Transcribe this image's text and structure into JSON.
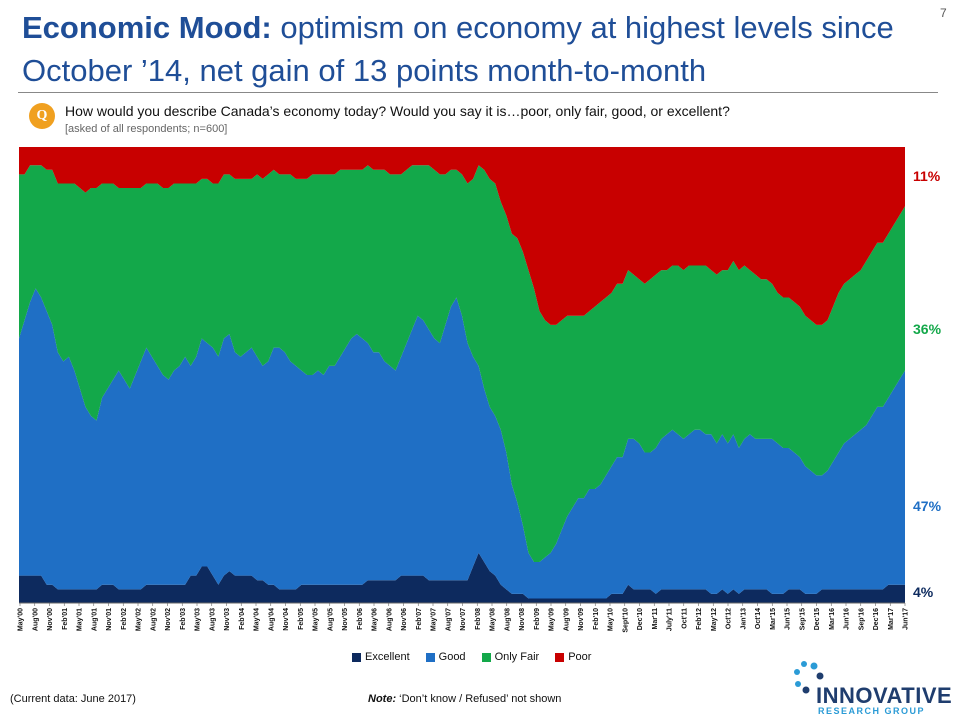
{
  "title": {
    "bold": "Economic Mood:",
    "rest": " optimism on economy at highest levels since October ’14, net gain of 13 points month-to-month"
  },
  "page_number": "7",
  "question": {
    "badge": "Q",
    "text": "How would you describe Canada’s economy today?  Would you say it is…poor, only fair, good, or excellent?",
    "note": "[asked of all respondents; n=600]"
  },
  "end_labels": {
    "poor": "11%",
    "only_fair": "36%",
    "good": "47%",
    "excellent": "4%"
  },
  "footer": {
    "current_data": "(Current data: June 2017)",
    "note_label": "Note:",
    "note_text": " ‘Don’t know / Refused’ not shown"
  },
  "logo": {
    "name": "INNOVATIVE",
    "sub": "RESEARCH GROUP"
  },
  "colors": {
    "excellent": "#0d2a5e",
    "good": "#1f6fc5",
    "only_fair": "#13a84a",
    "poor": "#c80000",
    "title": "#1f4e97"
  },
  "chart_data": {
    "type": "area",
    "stacked": true,
    "ylim": [
      0,
      100
    ],
    "series_order": [
      "Excellent",
      "Good",
      "Only Fair",
      "Poor"
    ],
    "legend": [
      "Excellent",
      "Good",
      "Only Fair",
      "Poor"
    ],
    "x_ticks": [
      "May'00",
      "Aug'00",
      "Nov'00",
      "Feb'01",
      "May'01",
      "Aug'01",
      "Nov'01",
      "Feb'02",
      "May'02",
      "Aug'02",
      "Nov'02",
      "Feb'03",
      "May'03",
      "Aug'03",
      "Nov'03",
      "Feb'04",
      "May'04",
      "Aug'04",
      "Nov'04",
      "Feb'05",
      "May'05",
      "Aug'05",
      "Nov'05",
      "Feb'06",
      "May'06",
      "Aug'06",
      "Nov'06",
      "Feb'07",
      "May'07",
      "Aug'07",
      "Nov'07",
      "Feb'08",
      "May'08",
      "Aug'08",
      "Nov'08",
      "Feb'09",
      "May'09",
      "Aug'09",
      "Nov'09",
      "Feb'10",
      "May'10",
      "Sept'10",
      "Dec'10",
      "Mar'11",
      "July'11",
      "Oct'11",
      "Feb'12",
      "May'12",
      "Oct'12",
      "Jan'13",
      "Oct'14",
      "Mar'15",
      "Jun'15",
      "Sep'15",
      "Dec'15",
      "Mar'16",
      "Jun'16",
      "Sep'16",
      "Dec'16",
      "Mar'17",
      "Jun'17"
    ],
    "series": [
      {
        "name": "Excellent",
        "values": [
          6,
          6,
          6,
          6,
          6,
          4,
          4,
          3,
          3,
          3,
          3,
          3,
          3,
          3,
          3,
          4,
          4,
          4,
          3,
          3,
          3,
          3,
          3,
          4,
          4,
          4,
          4,
          4,
          4,
          4,
          4,
          6,
          6,
          8,
          8,
          6,
          4,
          6,
          7,
          6,
          6,
          6,
          6,
          5,
          5,
          4,
          4,
          3,
          3,
          3,
          3,
          4,
          4,
          4,
          4,
          4,
          4,
          4,
          4,
          4,
          4,
          4,
          4,
          5,
          5,
          5,
          5,
          5,
          5,
          6,
          6,
          6,
          6,
          6,
          5,
          5,
          5,
          5,
          5,
          5,
          5,
          5,
          8,
          11,
          9,
          7,
          6,
          4,
          3,
          2,
          2,
          2,
          1,
          1,
          1,
          1,
          1,
          1,
          1,
          1,
          1,
          1,
          1,
          1,
          1,
          1,
          1,
          2,
          2,
          2,
          4,
          3,
          3,
          3,
          3,
          2,
          3,
          3,
          3,
          3,
          3,
          3,
          3,
          3,
          3,
          2,
          2,
          3,
          2,
          3,
          2,
          3,
          3,
          3,
          3,
          3,
          2,
          2,
          2,
          3,
          3,
          3,
          2,
          2,
          2,
          3,
          3,
          3,
          3,
          3,
          3,
          3,
          3,
          3,
          3,
          3,
          3,
          4,
          4,
          4,
          4
        ]
      },
      {
        "name": "Good",
        "values": [
          52,
          56,
          60,
          63,
          61,
          60,
          57,
          52,
          50,
          51,
          48,
          44,
          40,
          38,
          37,
          41,
          43,
          45,
          48,
          46,
          44,
          47,
          50,
          52,
          50,
          48,
          46,
          45,
          47,
          48,
          50,
          46,
          48,
          50,
          49,
          50,
          50,
          52,
          52,
          49,
          48,
          49,
          50,
          49,
          47,
          49,
          52,
          53,
          52,
          50,
          49,
          47,
          46,
          46,
          47,
          46,
          48,
          48,
          50,
          52,
          54,
          55,
          54,
          52,
          50,
          50,
          48,
          47,
          46,
          48,
          51,
          54,
          57,
          56,
          55,
          53,
          52,
          56,
          60,
          62,
          58,
          52,
          46,
          41,
          38,
          36,
          35,
          34,
          30,
          24,
          20,
          15,
          10,
          8,
          8,
          9,
          10,
          12,
          15,
          18,
          20,
          22,
          22,
          24,
          24,
          25,
          27,
          28,
          30,
          30,
          32,
          33,
          32,
          30,
          30,
          32,
          33,
          34,
          35,
          34,
          33,
          34,
          35,
          35,
          34,
          35,
          33,
          34,
          33,
          34,
          32,
          33,
          34,
          33,
          33,
          33,
          34,
          33,
          32,
          31,
          30,
          29,
          28,
          27,
          26,
          25,
          26,
          28,
          30,
          32,
          33,
          34,
          35,
          36,
          38,
          40,
          40,
          41,
          43,
          45,
          47
        ]
      },
      {
        "name": "Only Fair",
        "values": [
          36,
          32,
          30,
          27,
          29,
          31,
          34,
          37,
          39,
          38,
          41,
          44,
          47,
          50,
          51,
          47,
          45,
          43,
          40,
          42,
          44,
          41,
          38,
          36,
          38,
          40,
          41,
          42,
          41,
          40,
          38,
          40,
          38,
          35,
          36,
          36,
          38,
          36,
          35,
          38,
          39,
          38,
          37,
          40,
          41,
          41,
          39,
          38,
          39,
          41,
          41,
          42,
          43,
          44,
          43,
          44,
          42,
          42,
          41,
          39,
          37,
          36,
          37,
          39,
          40,
          40,
          42,
          42,
          43,
          40,
          38,
          36,
          33,
          34,
          36,
          37,
          37,
          33,
          30,
          28,
          31,
          35,
          39,
          44,
          48,
          50,
          51,
          50,
          52,
          55,
          58,
          60,
          62,
          60,
          55,
          52,
          50,
          48,
          46,
          44,
          42,
          40,
          40,
          39,
          40,
          40,
          39,
          38,
          38,
          38,
          37,
          36,
          36,
          37,
          38,
          38,
          37,
          36,
          36,
          37,
          37,
          37,
          36,
          36,
          37,
          36,
          37,
          36,
          38,
          38,
          39,
          38,
          36,
          36,
          35,
          35,
          34,
          33,
          33,
          33,
          33,
          33,
          33,
          33,
          33,
          33,
          33,
          34,
          35,
          35,
          35,
          35,
          35,
          36,
          36,
          36,
          36,
          36,
          36,
          36,
          36
        ]
      },
      {
        "name": "Poor",
        "values": [
          6,
          6,
          4,
          4,
          4,
          5,
          5,
          8,
          8,
          8,
          8,
          9,
          10,
          9,
          9,
          8,
          8,
          8,
          9,
          9,
          9,
          9,
          9,
          8,
          8,
          8,
          9,
          9,
          8,
          8,
          8,
          8,
          8,
          7,
          7,
          8,
          8,
          6,
          6,
          7,
          7,
          7,
          7,
          6,
          7,
          6,
          5,
          6,
          6,
          6,
          7,
          7,
          7,
          6,
          6,
          6,
          6,
          6,
          5,
          5,
          5,
          5,
          5,
          4,
          5,
          5,
          5,
          6,
          6,
          6,
          5,
          4,
          4,
          4,
          4,
          5,
          6,
          6,
          5,
          5,
          6,
          8,
          7,
          7,
          6,
          7,
          8,
          10,
          9,
          12,
          16,
          20,
          24,
          28,
          32,
          33,
          32,
          31,
          31,
          31,
          31,
          31,
          31,
          31,
          30,
          30,
          29,
          28,
          26,
          26,
          23,
          24,
          25,
          26,
          26,
          24,
          23,
          23,
          22,
          22,
          23,
          22,
          22,
          22,
          22,
          23,
          24,
          23,
          23,
          21,
          23,
          22,
          23,
          24,
          24,
          25,
          26,
          27,
          28,
          28,
          29,
          30,
          32,
          33,
          34,
          34,
          33,
          30,
          27,
          25,
          24,
          23,
          22,
          20,
          18,
          16,
          16,
          15,
          13,
          12,
          11
        ]
      }
    ]
  }
}
